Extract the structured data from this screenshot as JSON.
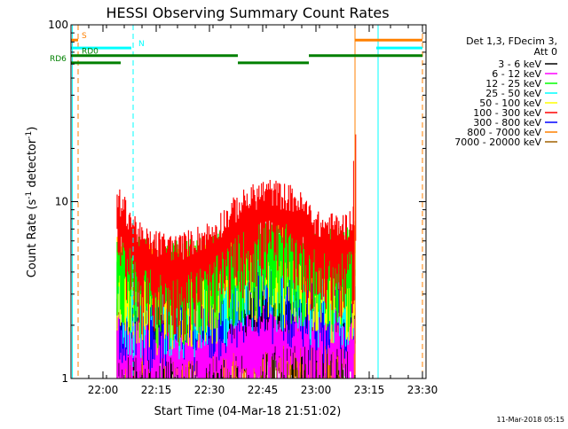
{
  "chart_data": {
    "type": "line",
    "title": "HESSI Observing Summary Count Rates",
    "xlabel": "Start Time (04-Mar-18 21:51:02)",
    "ylabel_main": "Count Rate (s",
    "ylabel_sup1": "-1",
    "ylabel_mid": " detector",
    "ylabel_sup2": "-1",
    "ylabel_end": ")",
    "yscale": "log",
    "ylim": [
      1,
      100
    ],
    "xlim_minutes": [
      0,
      100
    ],
    "x_ticks": [
      {
        "label": "22:00",
        "min": 9
      },
      {
        "label": "22:15",
        "min": 24
      },
      {
        "label": "22:30",
        "min": 39
      },
      {
        "label": "22:45",
        "min": 54
      },
      {
        "label": "23:00",
        "min": 69
      },
      {
        "label": "23:15",
        "min": 84
      },
      {
        "label": "23:30",
        "min": 99
      }
    ],
    "y_ticks": [
      {
        "label": "1",
        "value": 1
      },
      {
        "label": "10",
        "value": 10
      },
      {
        "label": "100",
        "value": 100
      }
    ],
    "legend": {
      "position": "right",
      "header": [
        "Det 1,3, FDecim 3,",
        "Att 0"
      ],
      "entries": [
        {
          "label": "3 - 6 keV",
          "color": "#000000"
        },
        {
          "label": "6 - 12 keV",
          "color": "#ff00ff"
        },
        {
          "label": "12 - 25 keV",
          "color": "#00ff00"
        },
        {
          "label": "25 - 50 keV",
          "color": "#00ffff"
        },
        {
          "label": "50 - 100 keV",
          "color": "#ffff00"
        },
        {
          "label": "100 - 300 keV",
          "color": "#ff0000"
        },
        {
          "label": "300 - 800 keV",
          "color": "#0000ff"
        },
        {
          "label": "800 - 7000 keV",
          "color": "#ff8000"
        },
        {
          "label": "7000 - 20000 keV",
          "color": "#a06000"
        }
      ]
    },
    "flag_bars": [
      {
        "label": "S",
        "color": "#ff8000",
        "value": 82,
        "label_min": 3,
        "segments": [
          [
            0,
            2
          ],
          [
            80,
            99
          ]
        ]
      },
      {
        "label": "N",
        "color": "#00ffff",
        "value": 74,
        "label_min": 19,
        "segments": [
          [
            0,
            17
          ],
          [
            86,
            99
          ]
        ]
      },
      {
        "label": "RD0",
        "color": "#008000",
        "value": 67,
        "label_min": 3,
        "segments": [
          [
            0,
            15
          ],
          [
            15,
            47
          ],
          [
            67,
            99
          ]
        ]
      },
      {
        "label": "RD6",
        "color": "#008000",
        "value": 61,
        "label_min": -6,
        "segments": [
          [
            0,
            14
          ],
          [
            47,
            67
          ]
        ]
      }
    ],
    "vertical_markers": [
      {
        "min": 0.4,
        "color": "#00ffff",
        "style": "solid"
      },
      {
        "min": 2,
        "color": "#ff8000",
        "style": "dashed"
      },
      {
        "min": 17.5,
        "color": "#00ffff",
        "style": "dashed"
      },
      {
        "min": 80,
        "color": "#ff8000",
        "style": "solid"
      },
      {
        "min": 86.5,
        "color": "#00ffff",
        "solid": true,
        "style": "solid"
      },
      {
        "min": 99,
        "color": "#ff8000",
        "style": "dashed"
      }
    ],
    "data_window_minutes": [
      13,
      80
    ],
    "series": [
      {
        "name": "3 - 6 keV",
        "color": "#000000",
        "min": [
          13,
          25,
          40,
          55,
          70,
          80
        ],
        "values": [
          2.0,
          2.0,
          2.0,
          2.5,
          2.5,
          2.5
        ]
      },
      {
        "name": "6 - 12 keV",
        "color": "#ff00ff",
        "min": [
          13,
          25,
          40,
          55,
          70,
          80
        ],
        "values": [
          1.6,
          1.6,
          1.6,
          1.8,
          1.8,
          1.8
        ]
      },
      {
        "name": "12 - 25 keV",
        "color": "#00ff00",
        "min": [
          13,
          25,
          40,
          55,
          70,
          80
        ],
        "values": [
          5.0,
          4.0,
          4.5,
          6.5,
          5.0,
          5.0
        ]
      },
      {
        "name": "25 - 50 keV",
        "color": "#00ffff",
        "min": [
          13,
          25,
          40,
          55,
          70,
          80
        ],
        "values": [
          4.0,
          3.5,
          3.8,
          5.5,
          4.0,
          4.2
        ]
      },
      {
        "name": "50 - 100 keV",
        "color": "#ffff00",
        "min": [
          13,
          25,
          40,
          55,
          70,
          80
        ],
        "values": [
          4.5,
          3.8,
          4.2,
          6.0,
          4.5,
          4.5
        ]
      },
      {
        "name": "100 - 300 keV",
        "color": "#ff0000",
        "min": [
          13,
          16,
          20,
          30,
          40,
          48,
          55,
          63,
          70,
          78,
          80
        ],
        "values": [
          8.5,
          7.0,
          5.0,
          4.5,
          5.5,
          8.0,
          9.5,
          8.5,
          6.0,
          6.0,
          7.0
        ]
      },
      {
        "name": "300 - 800 keV",
        "color": "#0000ff",
        "min": [
          13,
          25,
          40,
          55,
          70,
          80
        ],
        "values": [
          3.5,
          3.0,
          3.2,
          4.5,
          3.4,
          3.5
        ]
      },
      {
        "name": "800 - 7000 keV",
        "color": "#ff8000",
        "min": [
          13,
          25,
          40,
          55,
          70,
          80
        ],
        "values": [
          1.8,
          1.8,
          1.8,
          2.2,
          2.0,
          2.0
        ]
      },
      {
        "name": "7000 - 20000 keV",
        "color": "#a06000",
        "min": [
          13,
          25,
          40,
          55,
          70,
          80
        ],
        "values": [
          1.5,
          1.5,
          1.5,
          1.6,
          1.5,
          1.5
        ]
      }
    ]
  },
  "footer": {
    "timestamp": "11-Mar-2018 05:15"
  }
}
